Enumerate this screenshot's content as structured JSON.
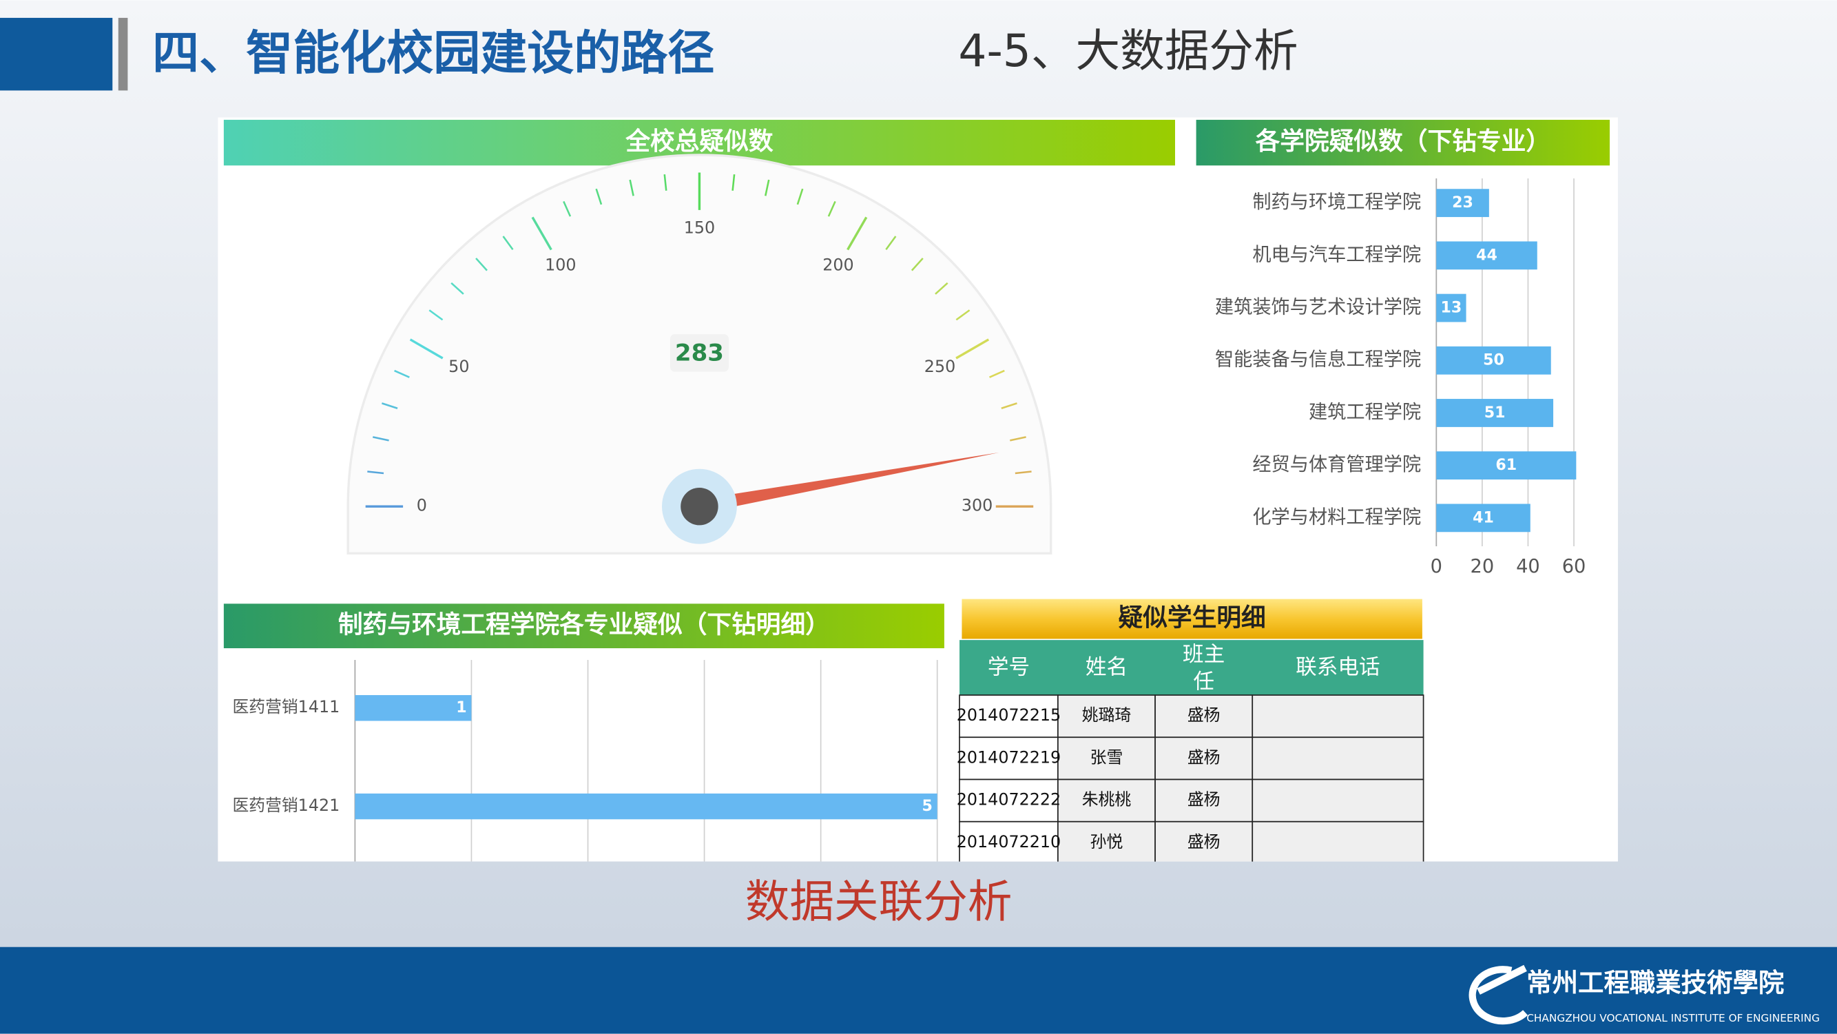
{
  "header": {
    "title": "四、智能化校园建设的路径",
    "subtitle": "4-5、大数据分析"
  },
  "chart_data": [
    {
      "type": "gauge",
      "title": "全校总疑似数",
      "value": 283,
      "range": [
        0,
        300
      ],
      "ticks": [
        0,
        50,
        100,
        150,
        200,
        250,
        300
      ],
      "needle_color": "#e0604a"
    },
    {
      "type": "hbar",
      "title": "各学院疑似数（下钻专业）",
      "categories": [
        "制药与环境工程学院",
        "机电与汽车工程学院",
        "建筑装饰与艺术设计学院",
        "智能装备与信息工程学院",
        "建筑工程学院",
        "经贸与体育管理学院",
        "化学与材料工程学院"
      ],
      "values": [
        23,
        44,
        13,
        50,
        51,
        61,
        41
      ],
      "color": "#5ab4ee",
      "xlim": [
        0,
        70
      ],
      "xticks": [
        0,
        20,
        40,
        60
      ],
      "grid": true
    },
    {
      "type": "hbar",
      "title": "制药与环境工程学院各专业疑似（下钻明细）",
      "categories": [
        "医药营销1411",
        "医药营销1421"
      ],
      "values": [
        1,
        5
      ],
      "color": "#66b8f2",
      "xlim": [
        0,
        5
      ],
      "xgrid": [
        0,
        1,
        2,
        3,
        4,
        5
      ],
      "grid": true
    }
  ],
  "table": {
    "title": "疑似学生明细",
    "columns": [
      "学号",
      "姓名",
      "班主任",
      "联系电话"
    ],
    "rows": [
      [
        "2014072215",
        "姚璐琦",
        "盛杨"
      ],
      [
        "2014072219",
        "张雪",
        "盛杨"
      ],
      [
        "2014072222",
        "朱桃桃",
        "盛杨"
      ],
      [
        "2014072210",
        "孙悦",
        "盛杨"
      ]
    ]
  },
  "caption": "数据关联分析",
  "footer": {
    "school": "常州工程職業技術學院",
    "school_en": "CHANGZHOU VOCATIONAL INSTITUTE OF ENGINEERING"
  }
}
